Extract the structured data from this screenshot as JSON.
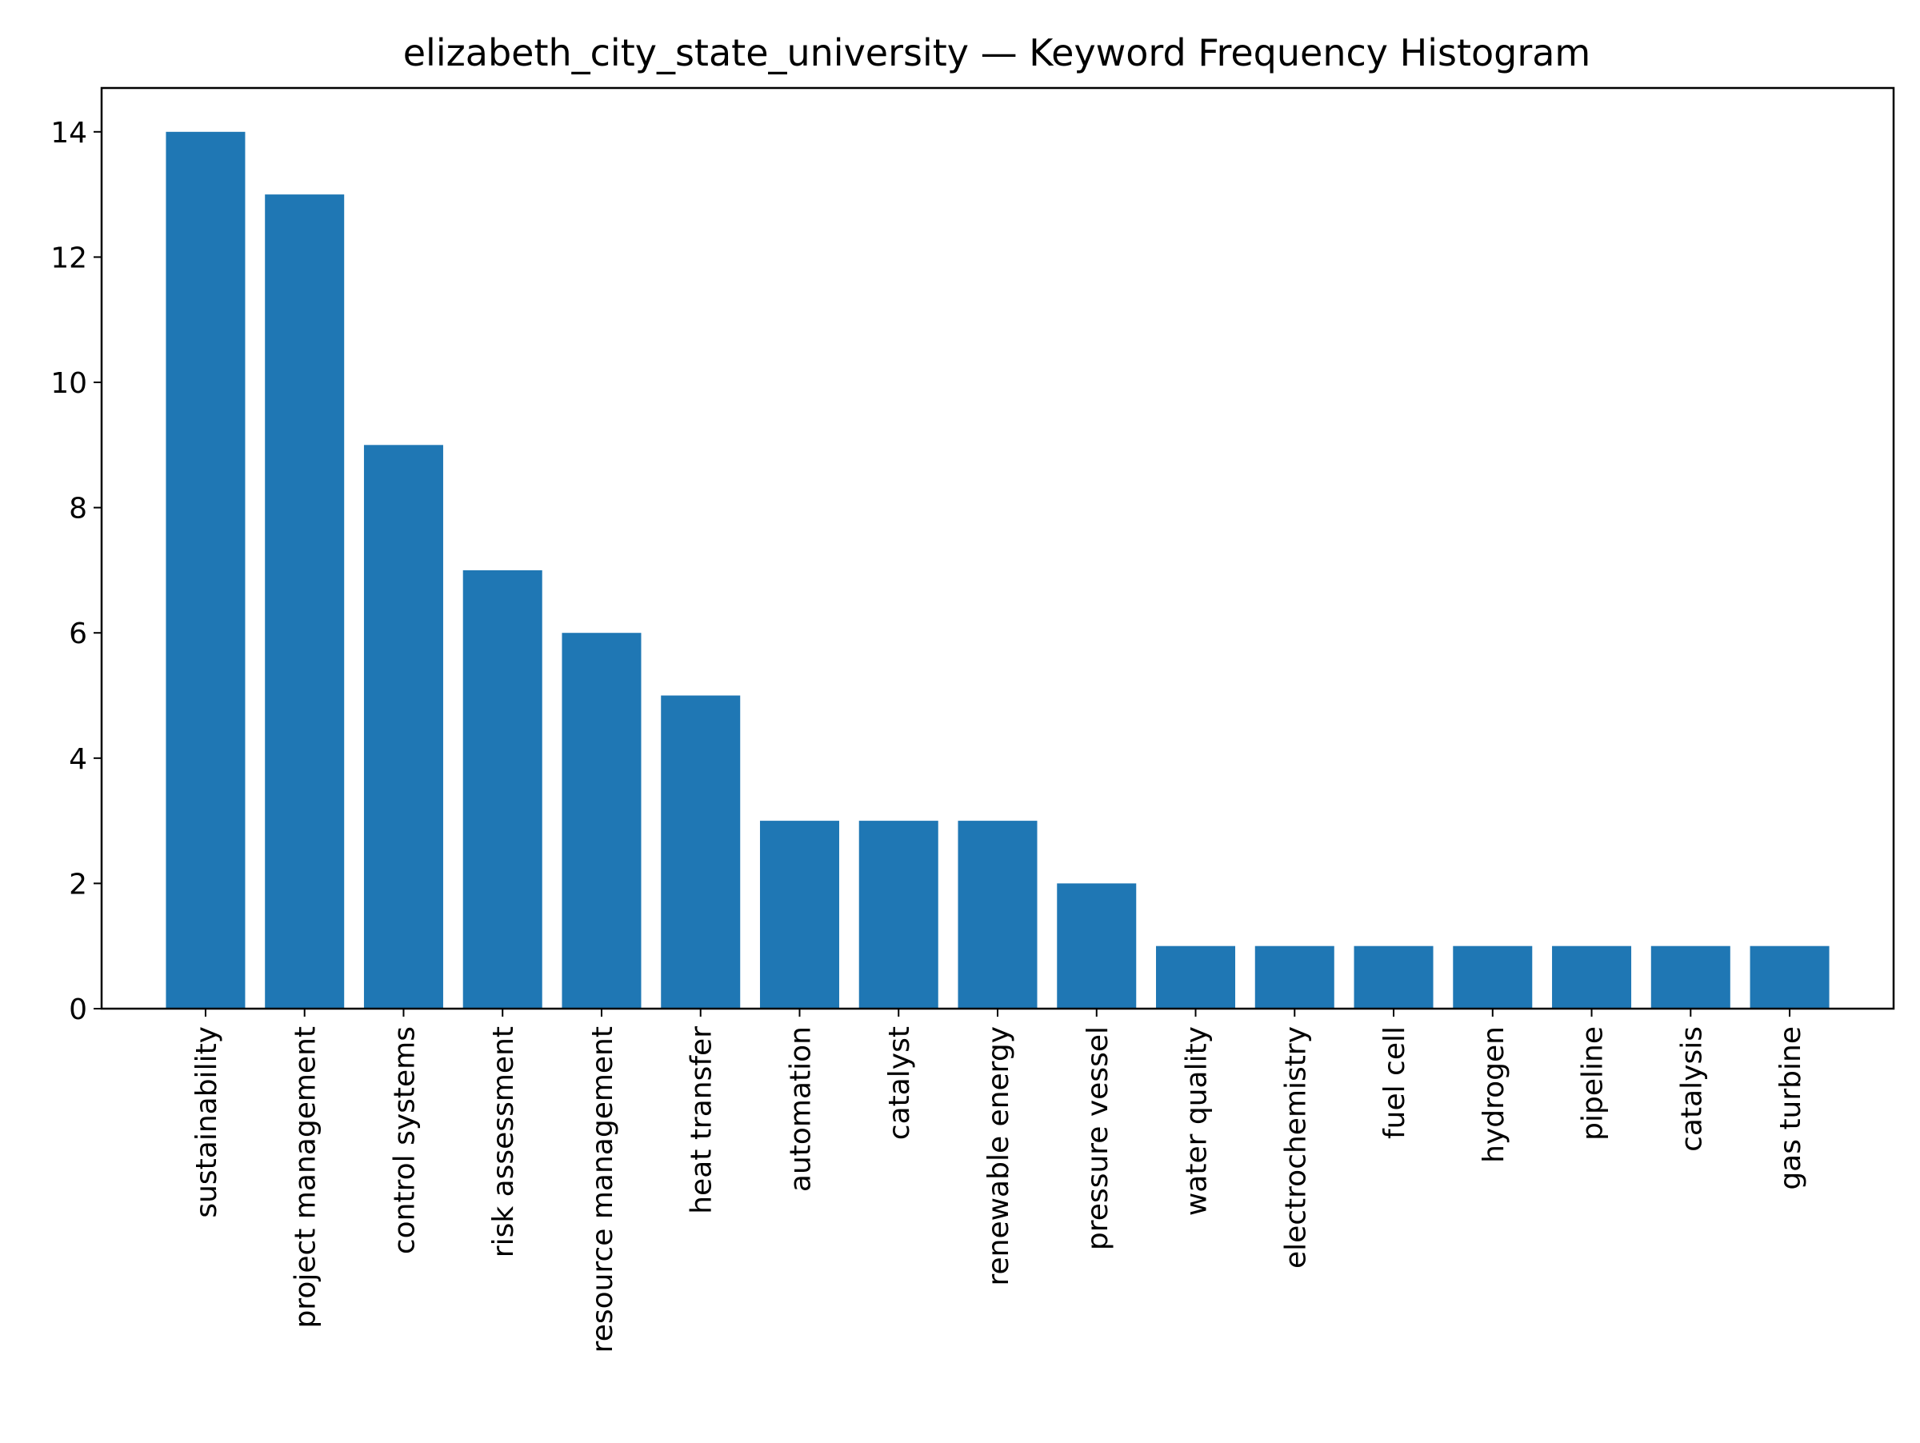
{
  "chart_data": {
    "type": "bar",
    "title": "elizabeth_city_state_university — Keyword Frequency Histogram",
    "xlabel": "",
    "ylabel": "",
    "categories": [
      "sustainability",
      "project management",
      "control systems",
      "risk assessment",
      "resource management",
      "heat transfer",
      "automation",
      "catalyst",
      "renewable energy",
      "pressure vessel",
      "water quality",
      "electrochemistry",
      "fuel cell",
      "hydrogen",
      "pipeline",
      "catalysis",
      "gas turbine"
    ],
    "values": [
      14,
      13,
      9,
      7,
      6,
      5,
      3,
      3,
      3,
      2,
      1,
      1,
      1,
      1,
      1,
      1,
      1
    ],
    "ylim": [
      0,
      14.7
    ],
    "yticks": [
      0,
      2,
      4,
      6,
      8,
      10,
      12,
      14
    ],
    "bar_color": "#1f77b4",
    "grid": false,
    "legend": "none"
  }
}
